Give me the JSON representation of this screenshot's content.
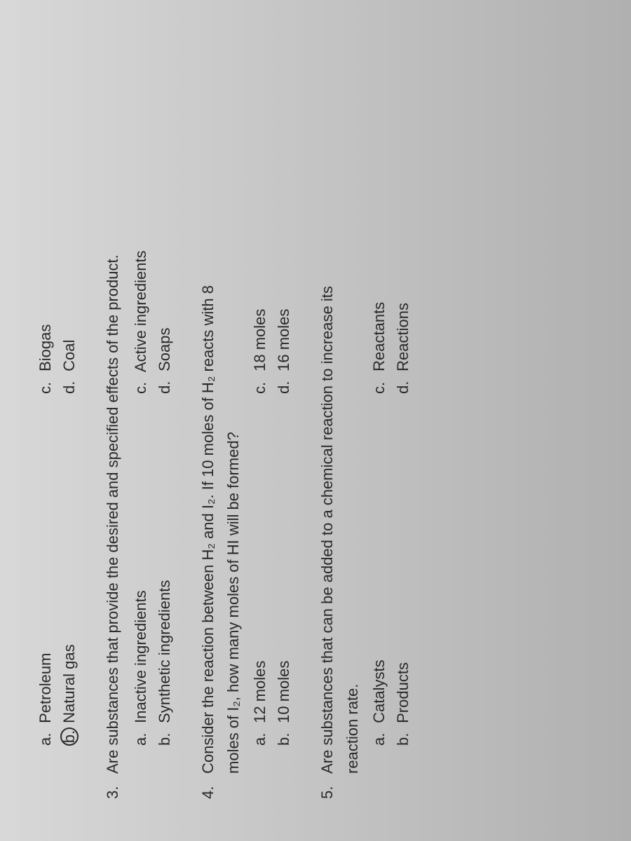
{
  "q2_partial": {
    "options": {
      "a": {
        "label": "a.",
        "text": "Petroleum"
      },
      "b": {
        "label": "b.",
        "text": "Natural gas",
        "circled": true
      },
      "c": {
        "label": "c.",
        "text": "Biogas"
      },
      "d": {
        "label": "d.",
        "text": "Coal"
      }
    }
  },
  "q3": {
    "number": "3.",
    "text": "Are substances that provide the desired and specified effects of the product.",
    "options": {
      "a": {
        "label": "a.",
        "text": "Inactive ingredients"
      },
      "b": {
        "label": "b.",
        "text": "Synthetic ingredients"
      },
      "c": {
        "label": "c.",
        "text": "Active ingredients"
      },
      "d": {
        "label": "d.",
        "text": "Soaps"
      }
    }
  },
  "q4": {
    "number": "4.",
    "text_line1": "Consider the reaction between H₂ and I₂. If 10 moles of H₂ reacts with 8",
    "text_line2": "moles of I₂, how many moles of HI will be formed?",
    "options": {
      "a": {
        "label": "a.",
        "text": "12 moles"
      },
      "b": {
        "label": "b.",
        "text": "10 moles"
      },
      "c": {
        "label": "c.",
        "text": "18 moles"
      },
      "d": {
        "label": "d.",
        "text": "16 moles"
      }
    }
  },
  "q5": {
    "number": "5.",
    "text_line1": "Are substances that can be added to a chemical reaction to increase its",
    "text_line2": "reaction rate.",
    "options": {
      "a": {
        "label": "a.",
        "text": "Catalysts"
      },
      "b": {
        "label": "b.",
        "text": "Products"
      },
      "c": {
        "label": "c.",
        "text": "Reactants"
      },
      "d": {
        "label": "d.",
        "text": "Reactions"
      }
    }
  },
  "colors": {
    "text": "#2a2a2a",
    "bg_top": "#d8d8d8",
    "bg_bottom": "#b0b0b0"
  },
  "typography": {
    "body_fontsize": 22,
    "font_family": "Arial, sans-serif"
  }
}
